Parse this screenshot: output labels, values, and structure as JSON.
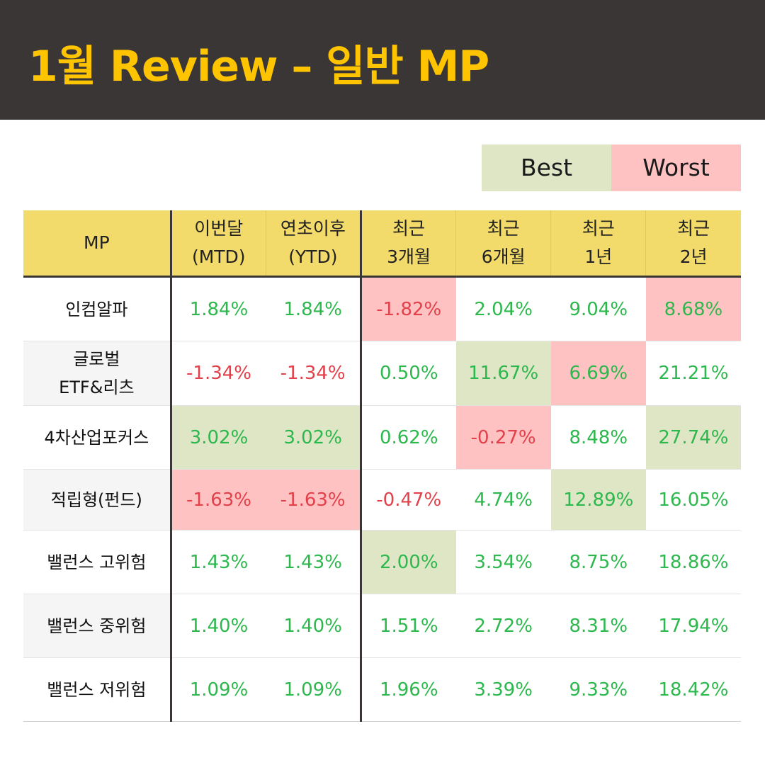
{
  "title": "1월 Review – 일반 MP",
  "legend": {
    "best": "Best",
    "worst": "Worst"
  },
  "colors": {
    "header_bg": "#3a3636",
    "title": "#ffc400",
    "best_bg": "#dfe6c6",
    "worst_bg": "#ffc2c2",
    "table_header_bg": "#f2db6b",
    "positive": "#2db84d",
    "negative": "#e2404a"
  },
  "table": {
    "headers": [
      {
        "line1": "MP",
        "line2": ""
      },
      {
        "line1": "이번달",
        "line2": "(MTD)"
      },
      {
        "line1": "연초이후",
        "line2": "(YTD)"
      },
      {
        "line1": "최근",
        "line2": "3개월"
      },
      {
        "line1": "최근",
        "line2": "6개월"
      },
      {
        "line1": "최근",
        "line2": "1년"
      },
      {
        "line1": "최근",
        "line2": "2년"
      }
    ],
    "rows": [
      {
        "name1": "인컴알파",
        "name2": "",
        "values": [
          "1.84%",
          "1.84%",
          "-1.82%",
          "2.04%",
          "9.04%",
          "8.68%"
        ],
        "highlight": [
          "",
          "",
          "worst",
          "",
          "",
          "worst"
        ]
      },
      {
        "name1": "글로벌",
        "name2": "ETF&리츠",
        "values": [
          "-1.34%",
          "-1.34%",
          "0.50%",
          "11.67%",
          "6.69%",
          "21.21%"
        ],
        "highlight": [
          "",
          "",
          "",
          "best",
          "worst",
          ""
        ]
      },
      {
        "name1": "4차산업포커스",
        "name2": "",
        "values": [
          "3.02%",
          "3.02%",
          "0.62%",
          "-0.27%",
          "8.48%",
          "27.74%"
        ],
        "highlight": [
          "best",
          "best",
          "",
          "worst",
          "",
          "best"
        ]
      },
      {
        "name1": "적립형(펀드)",
        "name2": "",
        "values": [
          "-1.63%",
          "-1.63%",
          "-0.47%",
          "4.74%",
          "12.89%",
          "16.05%"
        ],
        "highlight": [
          "worst",
          "worst",
          "",
          "",
          "best",
          ""
        ]
      },
      {
        "name1": "밸런스 고위험",
        "name2": "",
        "values": [
          "1.43%",
          "1.43%",
          "2.00%",
          "3.54%",
          "8.75%",
          "18.86%"
        ],
        "highlight": [
          "",
          "",
          "best",
          "",
          "",
          ""
        ]
      },
      {
        "name1": "밸런스 중위험",
        "name2": "",
        "values": [
          "1.40%",
          "1.40%",
          "1.51%",
          "2.72%",
          "8.31%",
          "17.94%"
        ],
        "highlight": [
          "",
          "",
          "",
          "",
          "",
          ""
        ]
      },
      {
        "name1": "밸런스 저위험",
        "name2": "",
        "values": [
          "1.09%",
          "1.09%",
          "1.96%",
          "3.39%",
          "9.33%",
          "18.42%"
        ],
        "highlight": [
          "",
          "",
          "",
          "",
          "",
          ""
        ]
      }
    ]
  }
}
